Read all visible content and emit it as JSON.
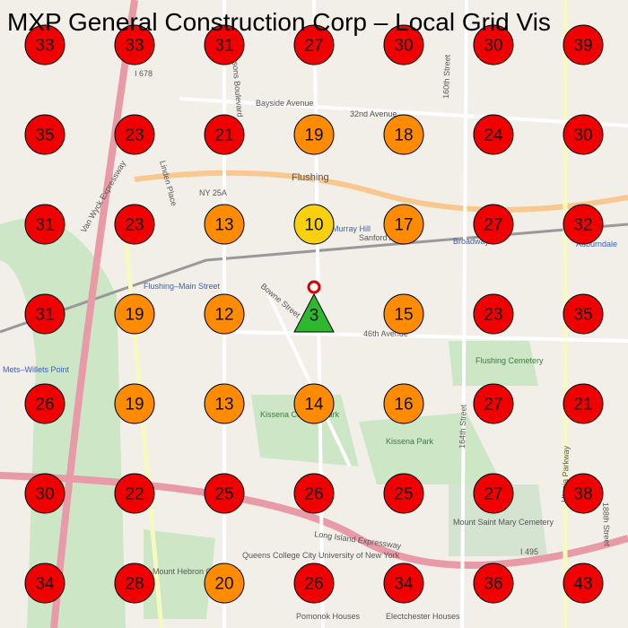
{
  "title": "MXP General Construction Corp – Local Grid Vis",
  "grid": {
    "rows": [
      [
        33,
        33,
        31,
        27,
        30,
        30,
        39
      ],
      [
        35,
        23,
        21,
        19,
        18,
        24,
        30
      ],
      [
        31,
        23,
        13,
        10,
        17,
        27,
        32
      ],
      [
        31,
        19,
        12,
        null,
        15,
        23,
        35
      ],
      [
        26,
        19,
        13,
        14,
        16,
        27,
        21
      ],
      [
        30,
        22,
        25,
        26,
        25,
        27,
        38
      ],
      [
        34,
        28,
        20,
        26,
        34,
        36,
        43
      ]
    ],
    "color_scale": [
      {
        "max": 10,
        "color": "#f7d10f"
      },
      {
        "max": 20,
        "color": "#ff8c00"
      },
      {
        "max": null,
        "color": "#f00000"
      }
    ]
  },
  "center": {
    "value": 3,
    "color": "#2eb82e"
  },
  "map_labels": [
    "I 678",
    "Bayside Avenue",
    "32nd Avenue",
    "160th Street",
    "Flushing",
    "NY 25A",
    "Murray Hill",
    "Sanford Avenue",
    "Broadway",
    "Auburndale",
    "Flushing–Main Street",
    "Bowne Street",
    "46th Avenue",
    "Flushing Cemetery",
    "Kissena Corridor Park",
    "Kissena Park",
    "164th Street",
    "Utopia Parkway",
    "188th Street",
    "Long Island Expressway",
    "Mount Saint Mary Cemetery",
    "Mount Hebron Cemetery",
    "Queens College City University of New York",
    "Pomonok Houses",
    "Electchester Houses",
    "Mets–Willets Point",
    "Van Wyck Expressway",
    "Linden Place",
    "Parsons Boulevard",
    "I 495"
  ]
}
